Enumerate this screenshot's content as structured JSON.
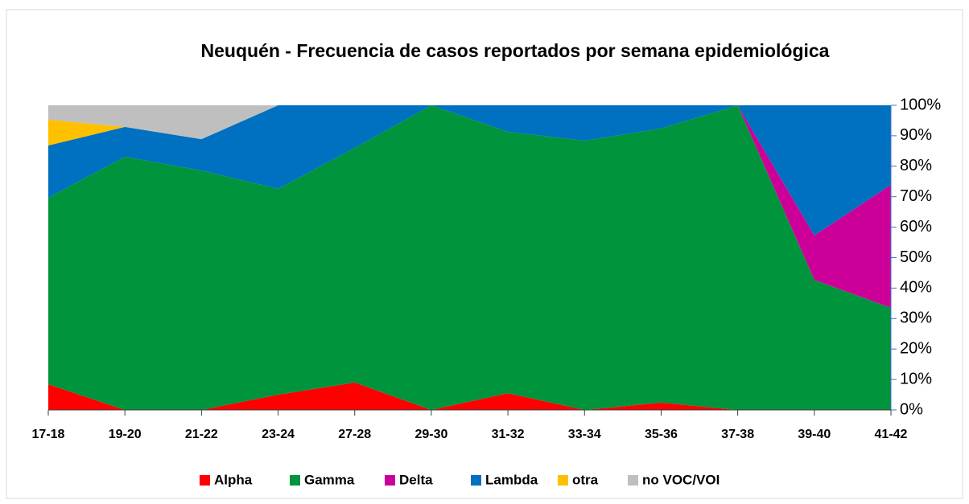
{
  "chart_data": {
    "type": "stacked_area",
    "title": "Neuquén - Frecuencia de casos reportados por semana epidemiológica",
    "categories": [
      "17-18",
      "19-20",
      "21-22",
      "23-24",
      "27-28",
      "29-30",
      "31-32",
      "33-34",
      "35-36",
      "37-38",
      "39-40",
      "41-42"
    ],
    "series": [
      {
        "name": "Alpha",
        "color": "#ff0000",
        "values": [
          8.4,
          0,
          0,
          5,
          9,
          0,
          5.5,
          0,
          2.4,
          0,
          0,
          0
        ]
      },
      {
        "name": "Gamma",
        "color": "#00943c",
        "values": [
          61.3,
          83.1,
          78.6,
          67.6,
          77,
          100,
          85.8,
          88.4,
          90,
          100,
          42.7,
          33.5
        ]
      },
      {
        "name": "Delta",
        "color": "#cc0099",
        "values": [
          0,
          0,
          0,
          0,
          0,
          0,
          0,
          0,
          0,
          0,
          14.6,
          40.4
        ]
      },
      {
        "name": "Lambda",
        "color": "#0070c0",
        "values": [
          17.1,
          9.8,
          10.3,
          27.4,
          14,
          0,
          8.7,
          11.6,
          7.6,
          0,
          42.7,
          26.1
        ]
      },
      {
        "name": "otra",
        "color": "#ffc000",
        "values": [
          8.5,
          0,
          0,
          0,
          0,
          0,
          0,
          0,
          0,
          0,
          0,
          0
        ]
      },
      {
        "name": "no VOC/VOI",
        "color": "#bfbfbf",
        "values": [
          4.7,
          7.1,
          11.1,
          0,
          0,
          0,
          0,
          0,
          0,
          0,
          0,
          0
        ]
      }
    ],
    "ylim": [
      0,
      100
    ],
    "yticks": [
      {
        "value": 0,
        "label": "0%"
      },
      {
        "value": 10,
        "label": "10%"
      },
      {
        "value": 20,
        "label": "20%"
      },
      {
        "value": 30,
        "label": "30%"
      },
      {
        "value": 40,
        "label": "40%"
      },
      {
        "value": 50,
        "label": "50%"
      },
      {
        "value": 60,
        "label": "60%"
      },
      {
        "value": 70,
        "label": "70%"
      },
      {
        "value": 80,
        "label": "80%"
      },
      {
        "value": 90,
        "label": "90%"
      },
      {
        "value": 100,
        "label": "100%"
      }
    ],
    "legend": "bottom"
  }
}
